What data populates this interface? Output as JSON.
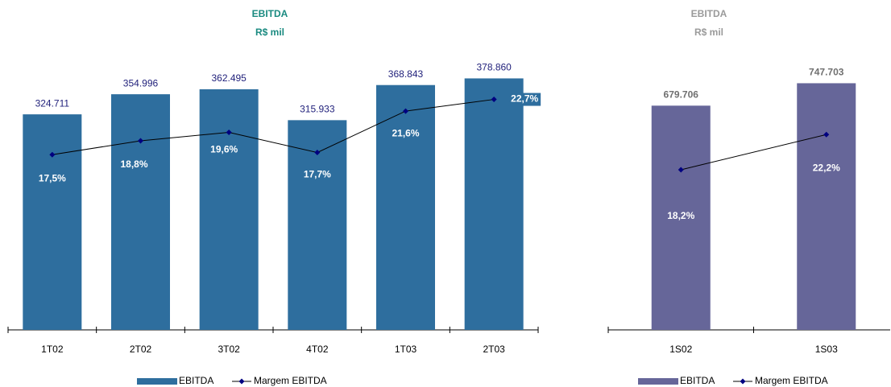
{
  "chart_data": [
    {
      "type": "bar",
      "title": "EBITDA",
      "subtitle": "R$ mil",
      "title_color": "#1a8a80",
      "categories": [
        "1T02",
        "2T02",
        "3T02",
        "4T02",
        "1T03",
        "2T03"
      ],
      "series": [
        {
          "name": "EBITDA",
          "type": "bar",
          "color": "#2e6e9e",
          "label_color": "#1f1f7a",
          "values": [
            324711,
            354996,
            362495,
            315933,
            368843,
            378860
          ],
          "value_labels": [
            "324.711",
            "354.996",
            "362.495",
            "315.933",
            "368.843",
            "378.860"
          ]
        },
        {
          "name": "Margem EBITDA",
          "type": "line",
          "axis": "y2",
          "color": "#000000",
          "marker_color": "#000080",
          "values": [
            17.5,
            18.8,
            19.6,
            17.7,
            21.6,
            22.7
          ],
          "value_labels": [
            "17,5%",
            "18,8%",
            "19,6%",
            "17,7%",
            "21,6%",
            "22,7%"
          ]
        }
      ],
      "ylim": [
        0,
        400000
      ],
      "y2lim": [
        1,
        26
      ]
    },
    {
      "type": "bar",
      "title": "EBITDA",
      "subtitle": "R$ mil",
      "title_color": "#9a9a9a",
      "categories": [
        "1S02",
        "1S03"
      ],
      "series": [
        {
          "name": "EBITDA",
          "type": "bar",
          "color": "#666699",
          "label_color": "#707070",
          "values": [
            679706,
            747703
          ],
          "value_labels": [
            "679.706",
            "747.703"
          ]
        },
        {
          "name": "Margem EBITDA",
          "type": "line",
          "axis": "y2",
          "color": "#000000",
          "marker_color": "#000080",
          "values": [
            18.2,
            22.2
          ],
          "value_labels": [
            "18,2%",
            "22,2%"
          ]
        }
      ],
      "ylim": [
        0,
        800000
      ],
      "y2lim": [
        0,
        30
      ]
    }
  ]
}
